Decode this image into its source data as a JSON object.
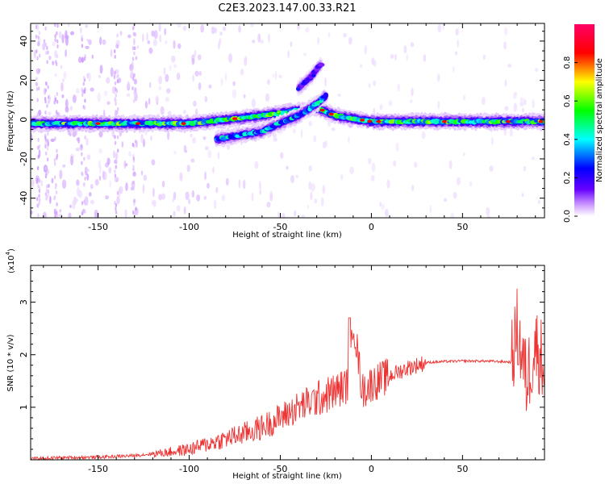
{
  "title": "C2E3.2023.147.00.33.R21",
  "chart_data": [
    {
      "type": "heatmap",
      "xlabel": "Height of straight line (km)",
      "ylabel": "Frequency (Hz)",
      "xlim": [
        -187,
        95
      ],
      "ylim": [
        -50,
        49
      ],
      "xticks": [
        -150,
        -100,
        -50,
        0,
        50
      ],
      "yticks": [
        -40,
        -20,
        0,
        20,
        40
      ],
      "colorbar": {
        "label": "Normalized spectral amplitude",
        "range": [
          0,
          1
        ],
        "ticks": [
          "0.0",
          "0.2",
          "0.4",
          "0.6",
          "0.8"
        ],
        "colors": [
          "#ffffff",
          "#cc99ff",
          "#6600ff",
          "#0000ff",
          "#00ffff",
          "#00ff00",
          "#ffff00",
          "#ff0000",
          "#ff0066"
        ]
      },
      "features": [
        {
          "name": "main ridge",
          "x": [
            -187,
            -150,
            -100,
            -60,
            -30,
            -20,
            0,
            30,
            60,
            90,
            95
          ],
          "y": [
            -2,
            -2,
            -2,
            2,
            6,
            2,
            -1,
            -1,
            -1,
            -1,
            -1
          ],
          "amplitude": 0.55
        },
        {
          "name": "rising branch",
          "x": [
            -85,
            -60,
            -40,
            -30,
            -25
          ],
          "y": [
            -10,
            -6,
            2,
            8,
            12
          ],
          "amplitude": 0.45
        },
        {
          "name": "upper branch",
          "x": [
            -40,
            -33,
            -28
          ],
          "y": [
            16,
            22,
            28
          ],
          "amplitude": 0.3
        }
      ]
    },
    {
      "type": "line",
      "xlabel": "Height of straight line (km)",
      "ylabel": "SNR (10 * v/v)",
      "yscale_label": "(x10",
      "yscale_exp": "4",
      "xlim": [
        -187,
        95
      ],
      "ylim": [
        0,
        3.7
      ],
      "xticks": [
        -150,
        -100,
        -50,
        0,
        50
      ],
      "yticks": [
        1,
        2,
        3
      ],
      "color": "#ee3333",
      "series": [
        {
          "x": [
            -187,
            -170,
            -150,
            -130,
            -110,
            -100,
            -90,
            -80,
            -70,
            -60,
            -50,
            -40,
            -30,
            -20,
            -12,
            -10,
            -5,
            0,
            10,
            20,
            30,
            40,
            50,
            60,
            70,
            77,
            80,
            85,
            90,
            95
          ],
          "y": [
            0.02,
            0.04,
            0.05,
            0.08,
            0.15,
            0.2,
            0.3,
            0.4,
            0.5,
            0.62,
            0.8,
            1.0,
            1.15,
            1.3,
            1.45,
            2.7,
            1.3,
            1.45,
            1.6,
            1.75,
            1.85,
            1.87,
            1.88,
            1.88,
            1.87,
            1.86,
            2.5,
            1.5,
            2.2,
            1.8
          ]
        }
      ]
    }
  ]
}
